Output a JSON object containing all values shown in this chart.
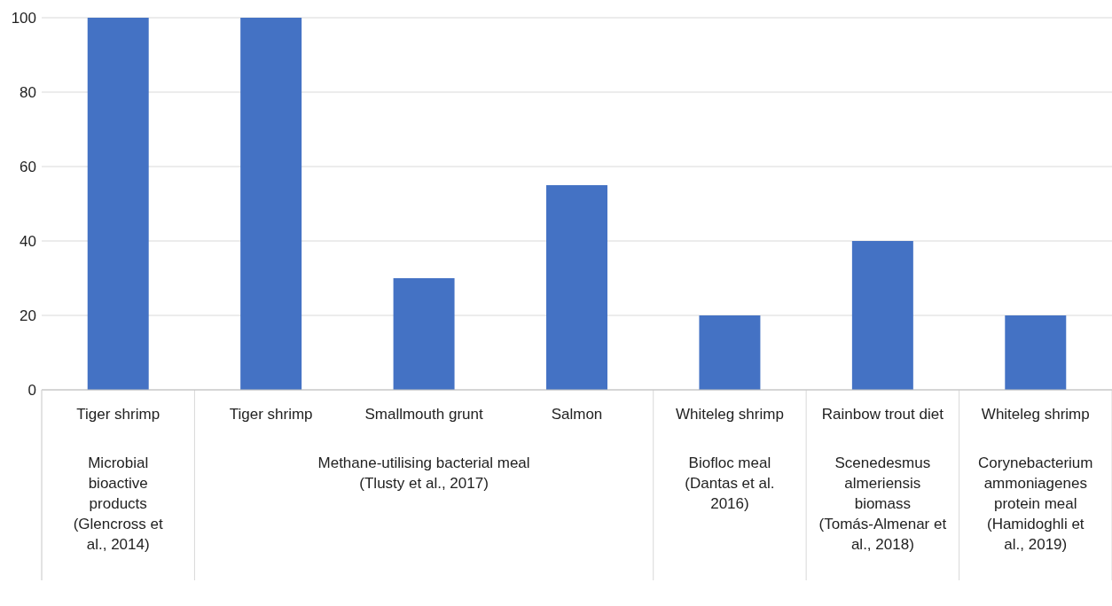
{
  "chart_data": {
    "type": "bar",
    "categories": [
      "Tiger shrimp",
      "Tiger shrimp",
      "Smallmouth grunt",
      "Salmon",
      "Whiteleg shrimp",
      "Rainbow trout diet",
      "Whiteleg shrimp"
    ],
    "values": [
      100,
      100,
      30,
      55,
      20,
      40,
      20
    ],
    "color": "#4472c4",
    "ylim": [
      0,
      100
    ],
    "yticks": [
      0,
      20,
      40,
      60,
      80,
      100
    ],
    "grid": "y",
    "annotations": [
      "Microbial bioactive products (Glencross et al., 2014)",
      "Methane-utilising bacterial meal (Tlusty et al., 2017)",
      "Biofloc meal (Dantas et al. 2016)",
      "Scenedesmus almeriensis biomass (Tomás-Almenar et al., 2018)",
      "Corynebacterium ammoniagenes protein meal (Hamidoghli et al., 2019)"
    ]
  }
}
